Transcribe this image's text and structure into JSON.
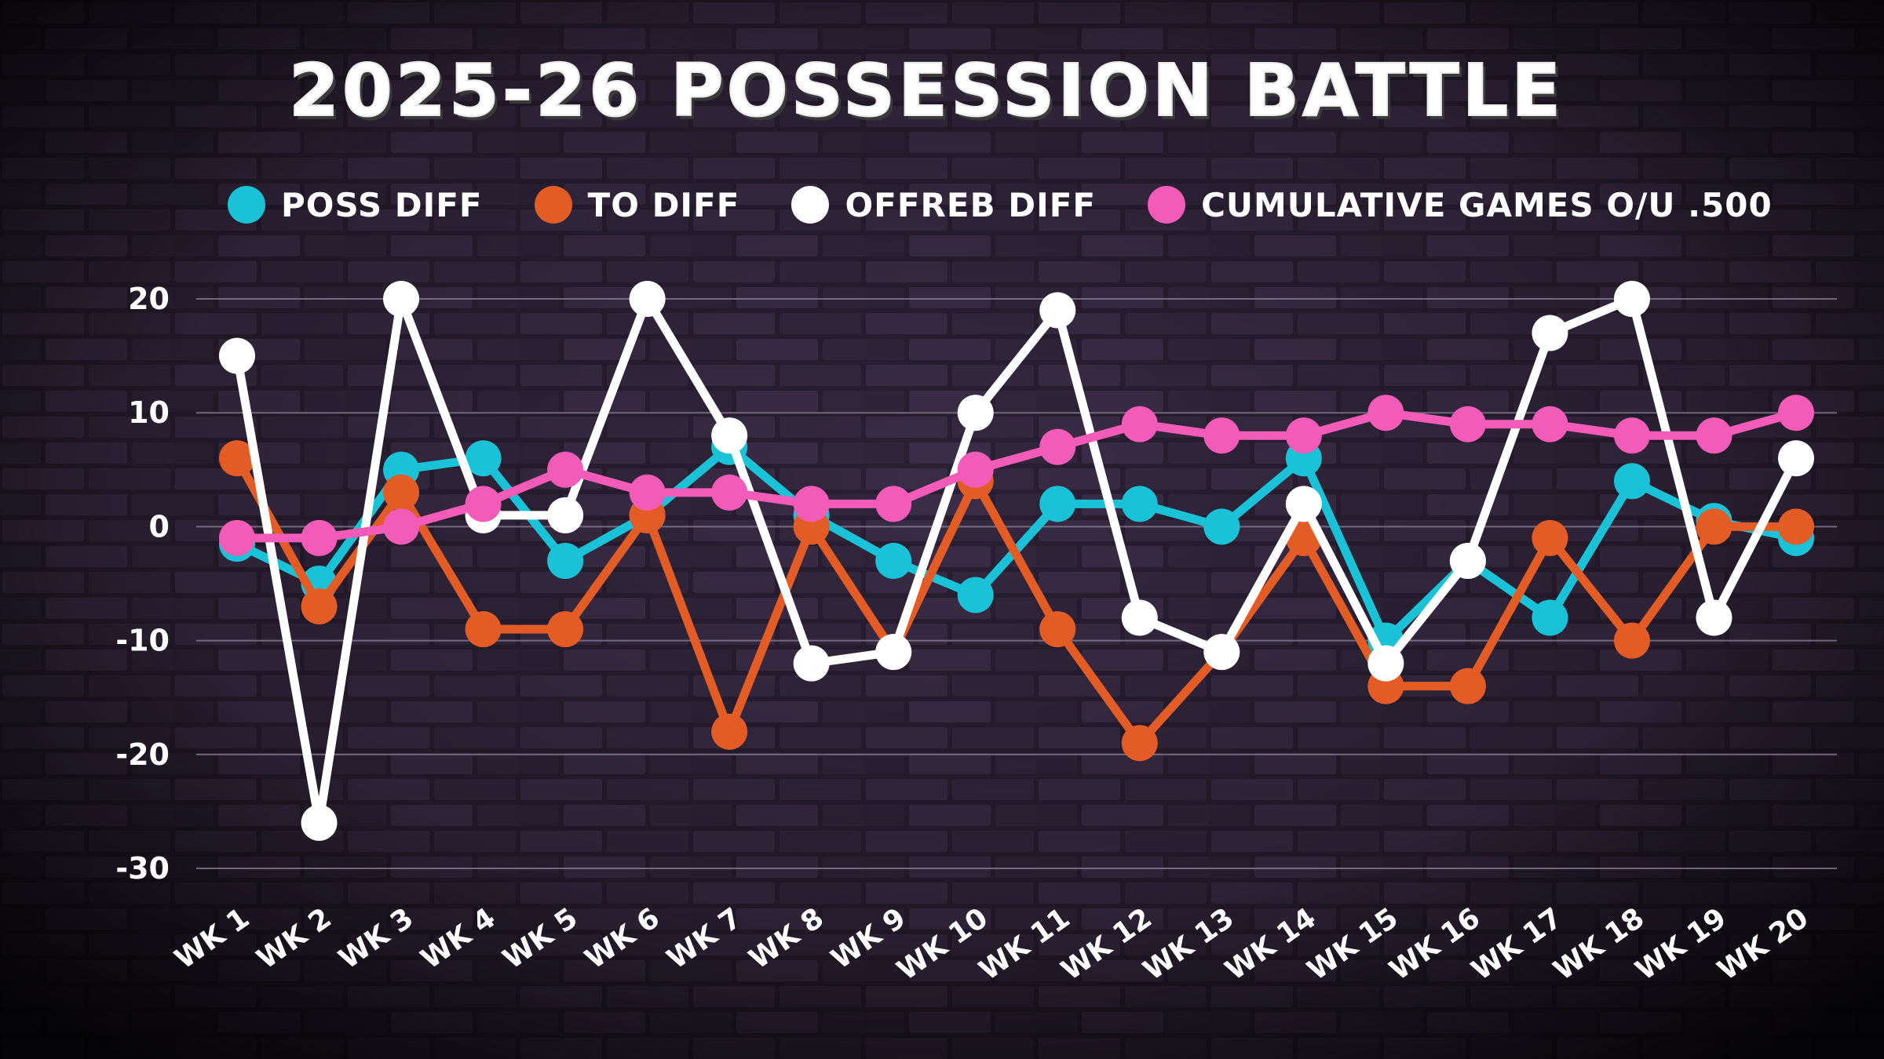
{
  "chart_data": {
    "type": "line",
    "title": "2025-26 POSSESSION BATTLE",
    "xlabel": "",
    "ylabel": "",
    "ylim": [
      -30,
      20
    ],
    "yticks": [
      "20",
      "10",
      "0",
      "-10",
      "-20",
      "-30"
    ],
    "ytick_values": [
      20,
      10,
      0,
      -10,
      -20,
      -30
    ],
    "grid": true,
    "legend_position": "top",
    "categories": [
      "WK 1",
      "WK 2",
      "WK 3",
      "WK 4",
      "WK 5",
      "WK 6",
      "WK 7",
      "WK 8",
      "WK 9",
      "WK 10",
      "WK 11",
      "WK 12",
      "WK 13",
      "WK 14",
      "WK 15",
      "WK 16",
      "WK 17",
      "WK 18",
      "WK 19",
      "WK 20"
    ],
    "series": [
      {
        "name": "POSS DIFF",
        "color": "#19c2d6",
        "values": [
          -1.5,
          -5,
          5,
          6,
          -3,
          1,
          7,
          1,
          -3,
          -6,
          2,
          2,
          0,
          6,
          -10,
          -3,
          -8,
          4,
          0.5,
          -1
        ]
      },
      {
        "name": "TO DIFF",
        "color": "#e35c25",
        "values": [
          6,
          -7,
          3,
          -9,
          -9,
          1,
          -18,
          0,
          -11,
          4,
          -9,
          -19,
          -11,
          -1,
          -14,
          -14,
          -1,
          -10,
          0,
          0
        ]
      },
      {
        "name": "OFFREB DIFF",
        "color": "#ffffff",
        "values": [
          15,
          -26,
          20,
          1,
          1,
          20,
          8,
          -12,
          -11,
          10,
          19,
          -8,
          -11,
          2,
          -12,
          -3,
          17,
          20,
          -8,
          6
        ]
      },
      {
        "name": "CUMULATIVE GAMES O/U .500",
        "color": "#f25cb8",
        "values": [
          -1,
          -1,
          0,
          2,
          5,
          3,
          3,
          2,
          2,
          5,
          7,
          9,
          8,
          8,
          10,
          9,
          9,
          8,
          8,
          10
        ]
      }
    ]
  }
}
